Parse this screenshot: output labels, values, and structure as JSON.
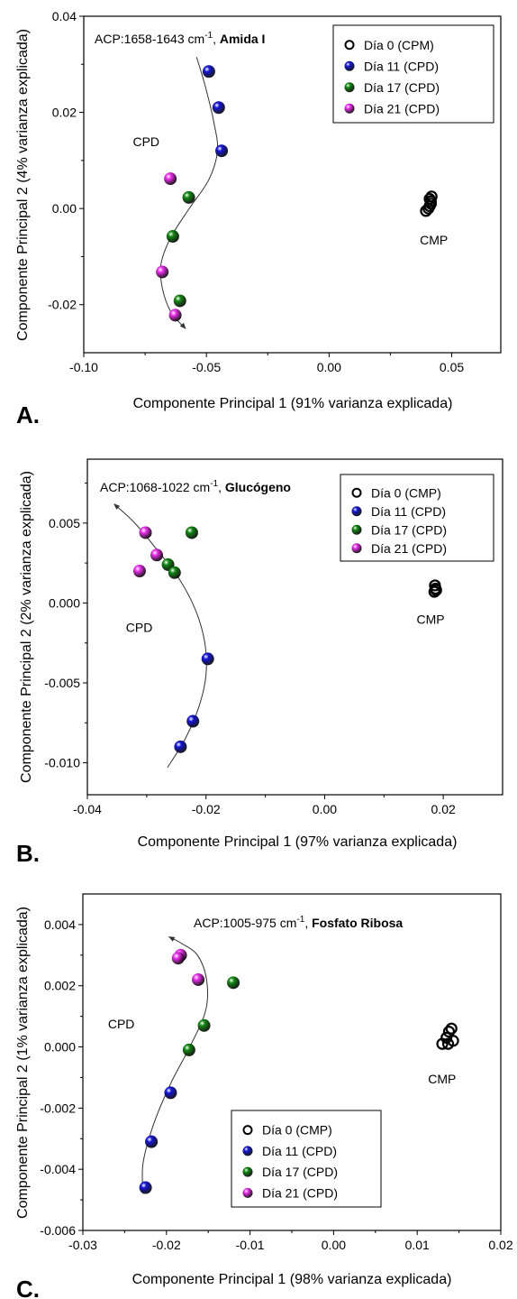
{
  "colors": {
    "day0": "#000000",
    "day11": "#1515d8",
    "day17": "#138a13",
    "day21": "#f02ef0"
  },
  "chart_data": [
    {
      "panel": "A.",
      "type": "scatter",
      "annotation_prefix": "ACP:1658-1643 cm",
      "annotation_sup": "-1",
      "annotation_suffix": ", ",
      "annotation_bold": "Amida I",
      "xlabel": "Componente Principal 1 (91% varianza explicada)",
      "ylabel": "Componente Principal 2 (4% varianza explicada)",
      "xlim": [
        -0.1,
        0.07
      ],
      "ylim": [
        -0.03,
        0.04
      ],
      "xticks": [
        -0.1,
        -0.05,
        0.0,
        0.05
      ],
      "xtick_labels": [
        "-0.10",
        "-0.05",
        "0.00",
        "0.05"
      ],
      "yticks": [
        -0.02,
        0.0,
        0.02,
        0.04
      ],
      "ytick_labels": [
        "-0.02",
        "0.00",
        "0.02",
        "0.04"
      ],
      "legend_position": "top-right",
      "text_labels": [
        {
          "text": "CPD",
          "x": -0.08,
          "y": 0.013
        },
        {
          "text": "CMP",
          "x": 0.037,
          "y": -0.0075
        }
      ],
      "series": [
        {
          "name": "Día  0  (CPM)",
          "color_key": "day0",
          "hollow": true,
          "points": [
            [
              0.0395,
              -0.0005
            ],
            [
              0.0405,
              0.0
            ],
            [
              0.041,
              0.0005
            ],
            [
              0.0415,
              0.001
            ],
            [
              0.0415,
              0.0015
            ],
            [
              0.0418,
              0.0025
            ],
            [
              0.041,
              0.002
            ]
          ]
        },
        {
          "name": "Día 11 (CPD)",
          "color_key": "day11",
          "hollow": false,
          "points": [
            [
              -0.049,
              0.0285
            ],
            [
              -0.045,
              0.021
            ],
            [
              -0.0438,
              0.012
            ]
          ]
        },
        {
          "name": "Día 17 (CPD)",
          "color_key": "day17",
          "hollow": false,
          "points": [
            [
              -0.0572,
              0.0023
            ],
            [
              -0.0637,
              -0.0058
            ],
            [
              -0.0608,
              -0.0192
            ]
          ]
        },
        {
          "name": "Día 21 (CPD)",
          "color_key": "day21",
          "hollow": false,
          "points": [
            [
              -0.0647,
              0.0062
            ],
            [
              -0.068,
              -0.0132
            ],
            [
              -0.0627,
              -0.0222
            ]
          ]
        }
      ],
      "trend_curve": [
        [
          -0.054,
          0.0315
        ],
        [
          -0.0505,
          0.0255
        ],
        [
          -0.047,
          0.018
        ],
        [
          -0.0455,
          0.012
        ],
        [
          -0.049,
          0.006
        ],
        [
          -0.057,
          0.0
        ],
        [
          -0.0645,
          -0.006
        ],
        [
          -0.0685,
          -0.0115
        ],
        [
          -0.068,
          -0.0165
        ],
        [
          -0.0645,
          -0.0215
        ],
        [
          -0.0585,
          -0.025
        ]
      ]
    },
    {
      "panel": "B.",
      "type": "scatter",
      "annotation_prefix": "ACP:1068-1022 cm",
      "annotation_sup": "-1",
      "annotation_suffix": ", ",
      "annotation_bold": "Glucógeno",
      "xlabel": "Componente Principal 1 (97% varianza explicada)",
      "ylabel": "Componente Principal 2 (2% varianza explicada)",
      "xlim": [
        -0.04,
        0.03
      ],
      "ylim": [
        -0.012,
        0.009
      ],
      "xticks": [
        -0.04,
        -0.02,
        0.0,
        0.02
      ],
      "xtick_labels": [
        "-0.04",
        "-0.02",
        "0.00",
        "0.02"
      ],
      "yticks": [
        -0.01,
        -0.005,
        0.0,
        0.005
      ],
      "ytick_labels": [
        "-0.010",
        "-0.005",
        "0.000",
        "0.005"
      ],
      "legend_position": "top-right",
      "text_labels": [
        {
          "text": "CPD",
          "x": -0.0335,
          "y": -0.0018
        },
        {
          "text": "CMP",
          "x": 0.0155,
          "y": -0.0013
        }
      ],
      "series": [
        {
          "name": "Día 0  (CMP)",
          "color_key": "day0",
          "hollow": true,
          "points": [
            [
              0.0185,
              0.0007
            ],
            [
              0.0187,
              0.0009
            ],
            [
              0.0186,
              0.0011
            ],
            [
              0.0188,
              0.0008
            ]
          ]
        },
        {
          "name": "Día 11 (CPD)",
          "color_key": "day11",
          "hollow": false,
          "points": [
            [
              -0.0197,
              -0.0035
            ],
            [
              -0.0222,
              -0.0074
            ],
            [
              -0.0243,
              -0.009
            ]
          ]
        },
        {
          "name": "Día 17 (CPD)",
          "color_key": "day17",
          "hollow": false,
          "points": [
            [
              -0.0224,
              0.0044
            ],
            [
              -0.0264,
              0.0024
            ],
            [
              -0.0253,
              0.0019
            ]
          ]
        },
        {
          "name": "Día 21 (CPD)",
          "color_key": "day21",
          "hollow": false,
          "points": [
            [
              -0.0302,
              0.0044
            ],
            [
              -0.0283,
              0.003
            ],
            [
              -0.0312,
              0.002
            ]
          ]
        }
      ],
      "trend_curve": [
        [
          -0.0265,
          -0.0103
        ],
        [
          -0.0235,
          -0.0085
        ],
        [
          -0.0212,
          -0.0065
        ],
        [
          -0.02,
          -0.0045
        ],
        [
          -0.0202,
          -0.0025
        ],
        [
          -0.0217,
          -0.0005
        ],
        [
          -0.0245,
          0.0015
        ],
        [
          -0.0282,
          0.0033
        ],
        [
          -0.032,
          0.005
        ],
        [
          -0.0355,
          0.0062
        ]
      ]
    },
    {
      "panel": "C.",
      "type": "scatter",
      "annotation_prefix": "ACP:1005-975 cm",
      "annotation_sup": "-1",
      "annotation_suffix": ", ",
      "annotation_bold": "Fosfato Ribosa",
      "xlabel": "Componente Principal 1 (98% varianza explicada)",
      "ylabel": "Componente Principal 2 (1% varianza explicada)",
      "xlim": [
        -0.03,
        0.02
      ],
      "ylim": [
        -0.006,
        0.005
      ],
      "xticks": [
        -0.03,
        -0.02,
        -0.01,
        0.0,
        0.01,
        0.02
      ],
      "xtick_labels": [
        "-0.03",
        "-0.02",
        "-0.01",
        "0.00",
        "0.01",
        "0.02"
      ],
      "yticks": [
        -0.006,
        -0.004,
        -0.002,
        0.0,
        0.002,
        0.004
      ],
      "ytick_labels": [
        "-0.006",
        "-0.004",
        "-0.002",
        "0.000",
        "0.002",
        "0.004"
      ],
      "legend_position": "bottom-center",
      "text_labels": [
        {
          "text": "CPD",
          "x": -0.027,
          "y": 0.0006
        },
        {
          "text": "CMP",
          "x": 0.0113,
          "y": -0.0012
        }
      ],
      "series": [
        {
          "name": "Día 0  (CMP)",
          "color_key": "day0",
          "hollow": true,
          "points": [
            [
              0.013,
              0.0001
            ],
            [
              0.0135,
              0.0003
            ],
            [
              0.0138,
              0.0005
            ],
            [
              0.0141,
              0.0006
            ],
            [
              0.0143,
              0.0002
            ],
            [
              0.0137,
              0.0001
            ]
          ]
        },
        {
          "name": "Día 11 (CPD)",
          "color_key": "day11",
          "hollow": false,
          "points": [
            [
              -0.0195,
              -0.0015
            ],
            [
              -0.0218,
              -0.0031
            ],
            [
              -0.0225,
              -0.0046
            ]
          ]
        },
        {
          "name": "Día 17 (CPD)",
          "color_key": "day17",
          "hollow": false,
          "points": [
            [
              -0.012,
              0.0021
            ],
            [
              -0.0155,
              0.0007
            ],
            [
              -0.0173,
              -0.0001
            ]
          ]
        },
        {
          "name": "Día 21 (CPD)",
          "color_key": "day21",
          "hollow": false,
          "points": [
            [
              -0.0183,
              0.003
            ],
            [
              -0.0186,
              0.0029
            ],
            [
              -0.0162,
              0.0022
            ]
          ]
        }
      ],
      "trend_curve": [
        [
          -0.0228,
          -0.0048
        ],
        [
          -0.0228,
          -0.0038
        ],
        [
          -0.0215,
          -0.0025
        ],
        [
          -0.0195,
          -0.0012
        ],
        [
          -0.0172,
          0.0
        ],
        [
          -0.0153,
          0.0012
        ],
        [
          -0.0152,
          0.0022
        ],
        [
          -0.0163,
          0.003
        ],
        [
          -0.0183,
          0.0034
        ],
        [
          -0.0197,
          0.0036
        ]
      ]
    }
  ]
}
